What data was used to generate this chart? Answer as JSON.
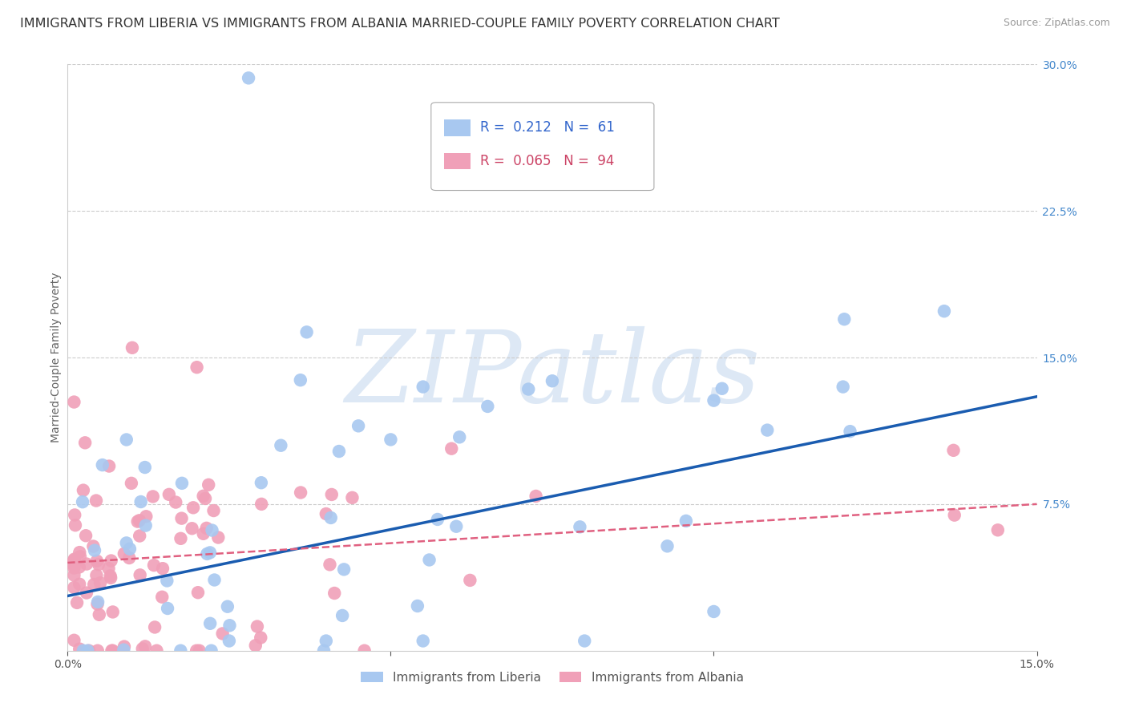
{
  "title": "IMMIGRANTS FROM LIBERIA VS IMMIGRANTS FROM ALBANIA MARRIED-COUPLE FAMILY POVERTY CORRELATION CHART",
  "source": "Source: ZipAtlas.com",
  "ylabel": "Married-Couple Family Poverty",
  "xlim": [
    0.0,
    0.15
  ],
  "ylim": [
    0.0,
    0.3
  ],
  "liberia_R": 0.212,
  "liberia_N": 61,
  "albania_R": 0.065,
  "albania_N": 94,
  "liberia_color": "#a8c8f0",
  "albania_color": "#f0a0b8",
  "liberia_line_color": "#1a5cb0",
  "albania_line_color": "#e06080",
  "background_color": "#ffffff",
  "watermark": "ZIPatlas",
  "watermark_color": "#dde8f5",
  "title_fontsize": 11.5,
  "axis_label_fontsize": 10,
  "tick_fontsize": 10,
  "legend_fontsize": 12,
  "liberia_line_start_y": 0.028,
  "liberia_line_end_y": 0.13,
  "albania_line_start_y": 0.045,
  "albania_line_end_y": 0.075
}
